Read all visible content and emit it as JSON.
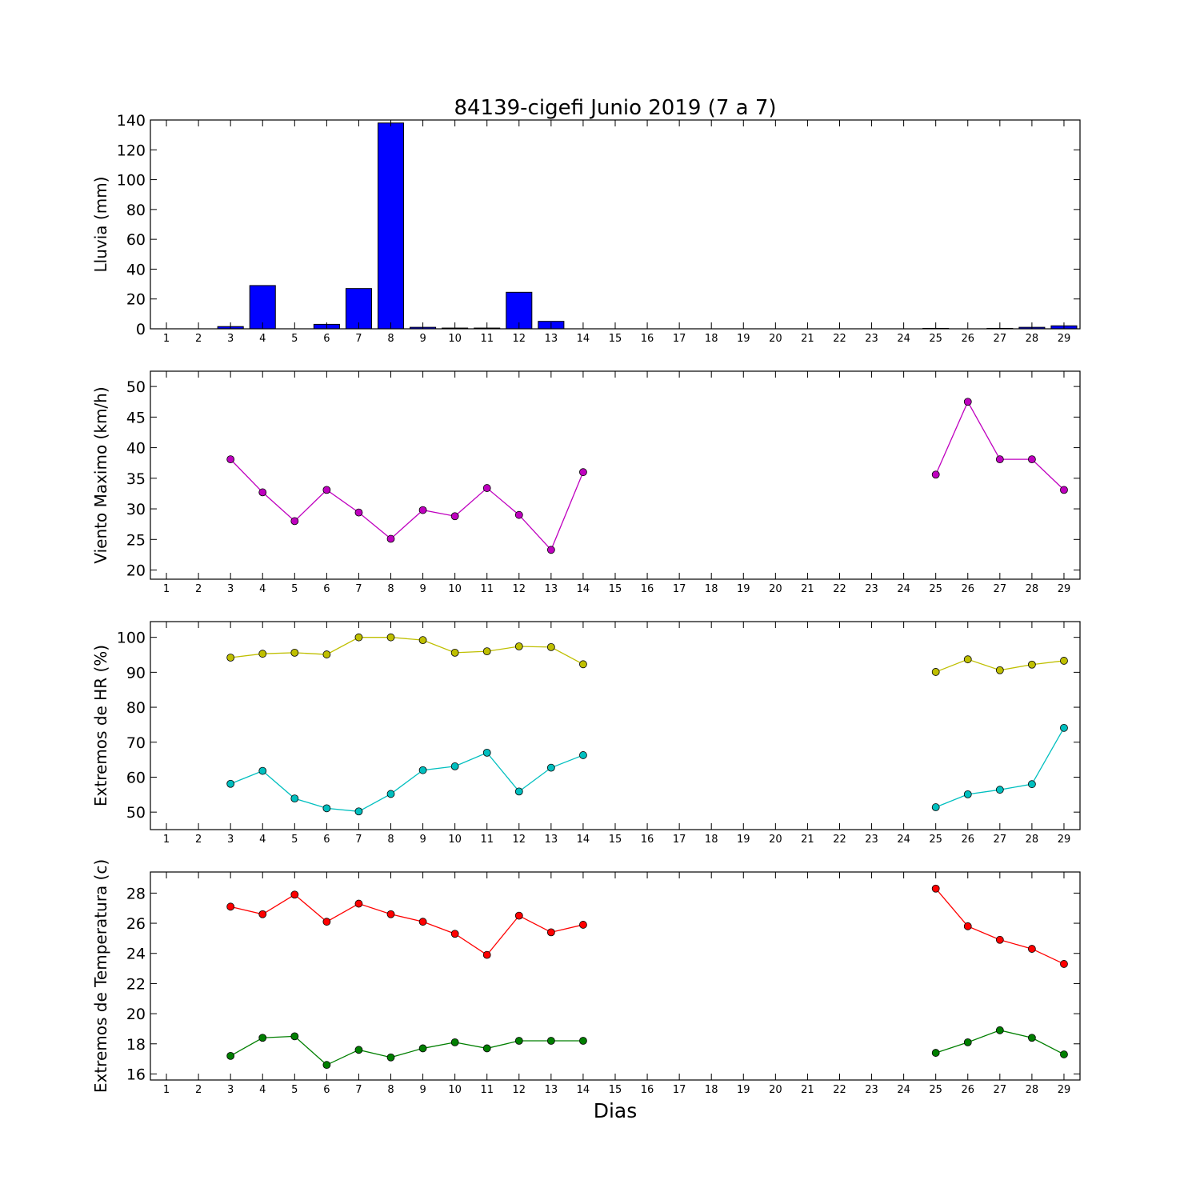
{
  "figure_title": "84139-cigefi Junio 2019  (7 a 7)",
  "xlabel": "Dias",
  "days": [
    1,
    2,
    3,
    4,
    5,
    6,
    7,
    8,
    9,
    10,
    11,
    12,
    13,
    14,
    15,
    16,
    17,
    18,
    19,
    20,
    21,
    22,
    23,
    24,
    25,
    26,
    27,
    28,
    29
  ],
  "chart_data": [
    {
      "type": "bar",
      "title": "84139-cigefi Junio 2019  (7 a 7)",
      "ylabel": "Lluvia (mm)",
      "ylim": [
        0,
        140
      ],
      "yticks": [
        0,
        20,
        40,
        60,
        80,
        100,
        120,
        140
      ],
      "series": [
        {
          "color": "#0000ff",
          "x": [
            1,
            2,
            3,
            4,
            5,
            6,
            7,
            8,
            9,
            10,
            11,
            12,
            13,
            14,
            15,
            16,
            17,
            18,
            19,
            20,
            21,
            22,
            23,
            24,
            25,
            26,
            27,
            28,
            29
          ],
          "values": [
            0,
            0,
            1.5,
            29,
            0,
            3,
            27,
            138,
            1,
            0.5,
            0.5,
            24.5,
            5,
            0,
            0,
            0,
            0,
            0,
            0,
            0,
            0,
            0,
            0,
            0,
            0.3,
            0,
            0.3,
            1,
            2
          ]
        }
      ]
    },
    {
      "type": "line",
      "ylabel": "Viento Maximo (km/h)",
      "ylim": [
        18.5,
        52.5
      ],
      "yticks": [
        20,
        25,
        30,
        35,
        40,
        45,
        50
      ],
      "series": [
        {
          "color": "#bf00bf",
          "x": [
            3,
            4,
            5,
            6,
            7,
            8,
            9,
            10,
            11,
            12,
            13,
            14,
            null,
            25,
            26,
            27,
            28,
            29
          ],
          "values": [
            38.1,
            32.7,
            28.0,
            33.1,
            29.4,
            25.1,
            29.8,
            28.8,
            33.4,
            29.0,
            23.3,
            36.0,
            null,
            35.6,
            47.5,
            38.1,
            38.1,
            33.1
          ]
        }
      ]
    },
    {
      "type": "line",
      "ylabel": "Extremos de HR (%)",
      "ylim": [
        45,
        104.5
      ],
      "yticks": [
        50,
        60,
        70,
        80,
        90,
        100
      ],
      "series": [
        {
          "color": "#bfbf00",
          "x": [
            3,
            4,
            5,
            6,
            7,
            8,
            9,
            10,
            11,
            12,
            13,
            14,
            null,
            25,
            26,
            27,
            28,
            29
          ],
          "values": [
            94.2,
            95.3,
            95.6,
            95.1,
            100,
            100,
            99.2,
            95.6,
            96.0,
            97.4,
            97.2,
            92.3,
            null,
            90.1,
            93.7,
            90.6,
            92.2,
            93.3
          ]
        },
        {
          "color": "#00bfbf",
          "x": [
            3,
            4,
            5,
            6,
            7,
            8,
            9,
            10,
            11,
            12,
            13,
            14,
            null,
            25,
            26,
            27,
            28,
            29
          ],
          "values": [
            58.1,
            61.8,
            53.9,
            51.1,
            50.2,
            55.2,
            62.0,
            63.1,
            67.0,
            55.9,
            62.7,
            66.3,
            null,
            51.4,
            55.1,
            56.4,
            58.0,
            74.1
          ]
        }
      ]
    },
    {
      "type": "line",
      "ylabel": "Extremos de Temperatura (c)",
      "ylim": [
        15.6,
        29.4
      ],
      "yticks": [
        16,
        18,
        20,
        22,
        24,
        26,
        28
      ],
      "series": [
        {
          "color": "#ff0000",
          "x": [
            3,
            4,
            5,
            6,
            7,
            8,
            9,
            10,
            11,
            12,
            13,
            14,
            null,
            25,
            26,
            27,
            28,
            29
          ],
          "values": [
            27.1,
            26.6,
            27.9,
            26.1,
            27.3,
            26.6,
            26.1,
            25.3,
            23.9,
            26.5,
            25.4,
            25.9,
            null,
            28.3,
            25.8,
            24.9,
            24.3,
            23.3
          ]
        },
        {
          "color": "#007f00",
          "x": [
            3,
            4,
            5,
            6,
            7,
            8,
            9,
            10,
            11,
            12,
            13,
            14,
            null,
            25,
            26,
            27,
            28,
            29
          ],
          "values": [
            17.2,
            18.4,
            18.5,
            16.6,
            17.6,
            17.1,
            17.7,
            18.1,
            17.7,
            18.2,
            18.2,
            18.2,
            null,
            17.4,
            18.1,
            18.9,
            18.4,
            17.3
          ]
        }
      ]
    }
  ]
}
